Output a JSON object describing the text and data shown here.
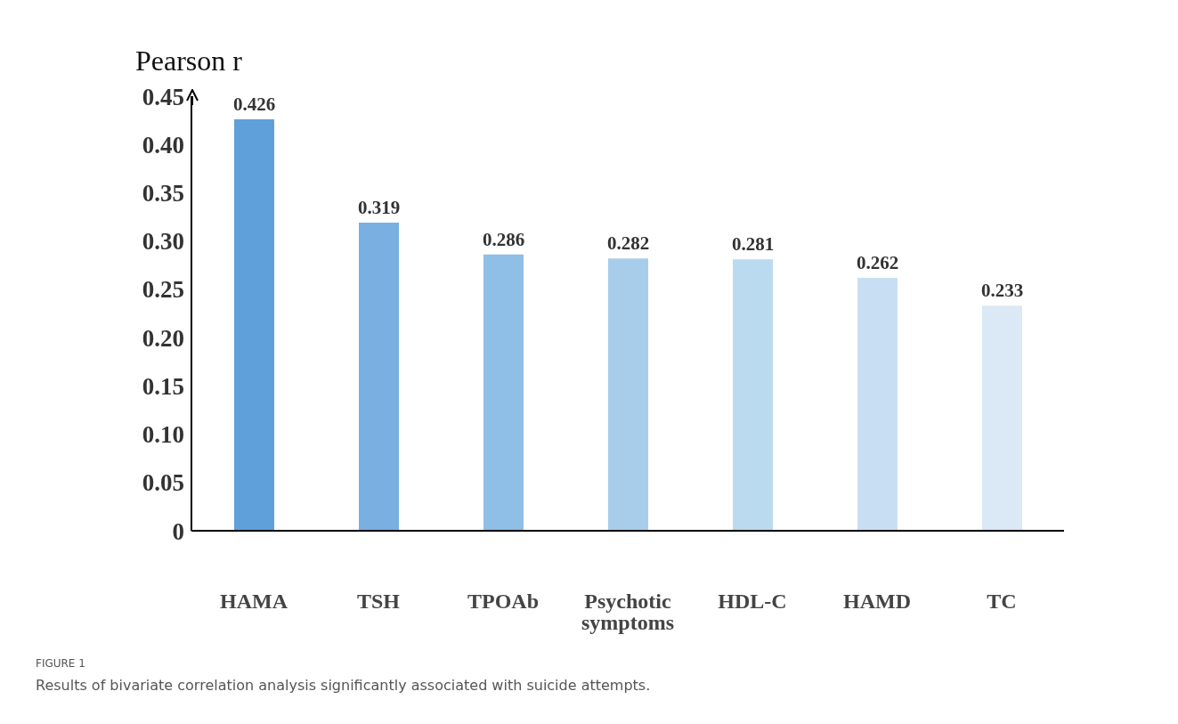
{
  "chart_data": {
    "type": "bar",
    "ylabel": "Pearson r",
    "categories": [
      "HAMA",
      "TSH",
      "TPOAb",
      "Psychotic symptoms",
      "HDL-C",
      "HAMD",
      "TC"
    ],
    "values": [
      0.426,
      0.319,
      0.286,
      0.282,
      0.281,
      0.262,
      0.233
    ],
    "colors": [
      "#5fa0da",
      "#79b0e1",
      "#8fbee6",
      "#a8cdeb",
      "#badaef",
      "#c8dff3",
      "#dbe8f5"
    ],
    "data_labels": true,
    "ylim": [
      0,
      0.45
    ],
    "yticks": [
      {
        "value": 0,
        "label": "0"
      },
      {
        "value": 0.05,
        "label": "0.05"
      },
      {
        "value": 0.1,
        "label": "0.10"
      },
      {
        "value": 0.15,
        "label": "0.15"
      },
      {
        "value": 0.2,
        "label": "0.20"
      },
      {
        "value": 0.25,
        "label": "0.25"
      },
      {
        "value": 0.3,
        "label": "0.30"
      },
      {
        "value": 0.35,
        "label": "0.35"
      },
      {
        "value": 0.4,
        "label": "0.40"
      },
      {
        "value": 0.45,
        "label": "0.45"
      }
    ],
    "grid": false,
    "legend": false,
    "annotations": [
      "FIGURE 1",
      "Results of bivariate correlation analysis significantly associated with suicide attempts."
    ]
  }
}
